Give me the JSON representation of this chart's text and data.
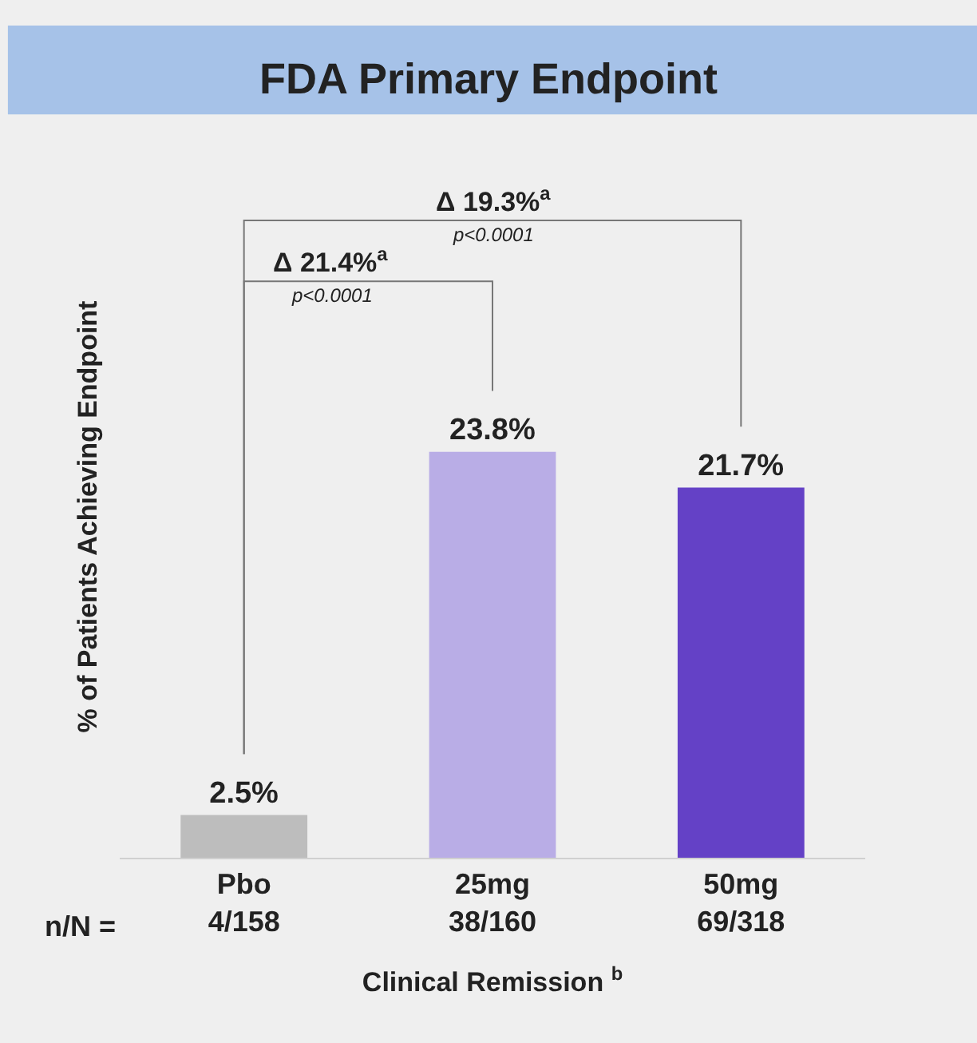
{
  "chart_data": {
    "type": "bar",
    "title": "FDA Primary Endpoint",
    "ylabel": "% of Patients Achieving Endpoint",
    "xlabel": "Clinical Remission $^{b}$",
    "categories": [
      "Pbo\n4/158",
      "25mg\n38/160",
      "50mg\n69/318"
    ],
    "values": [
      2.5,
      23.8,
      21.7
    ],
    "colors": [
      "#bdbdbd",
      "#b9ade6",
      "#6441c6"
    ],
    "value_labels": [
      "2.5%",
      "23.8%",
      "21.7%"
    ],
    "annotations": [
      "n/N =",
      "Δ 21.4%$^{a}$",
      "p<0.0001",
      "Δ 19.3%$^{a}$",
      "p<0.0001"
    ],
    "grid": false,
    "legend": false
  }
}
